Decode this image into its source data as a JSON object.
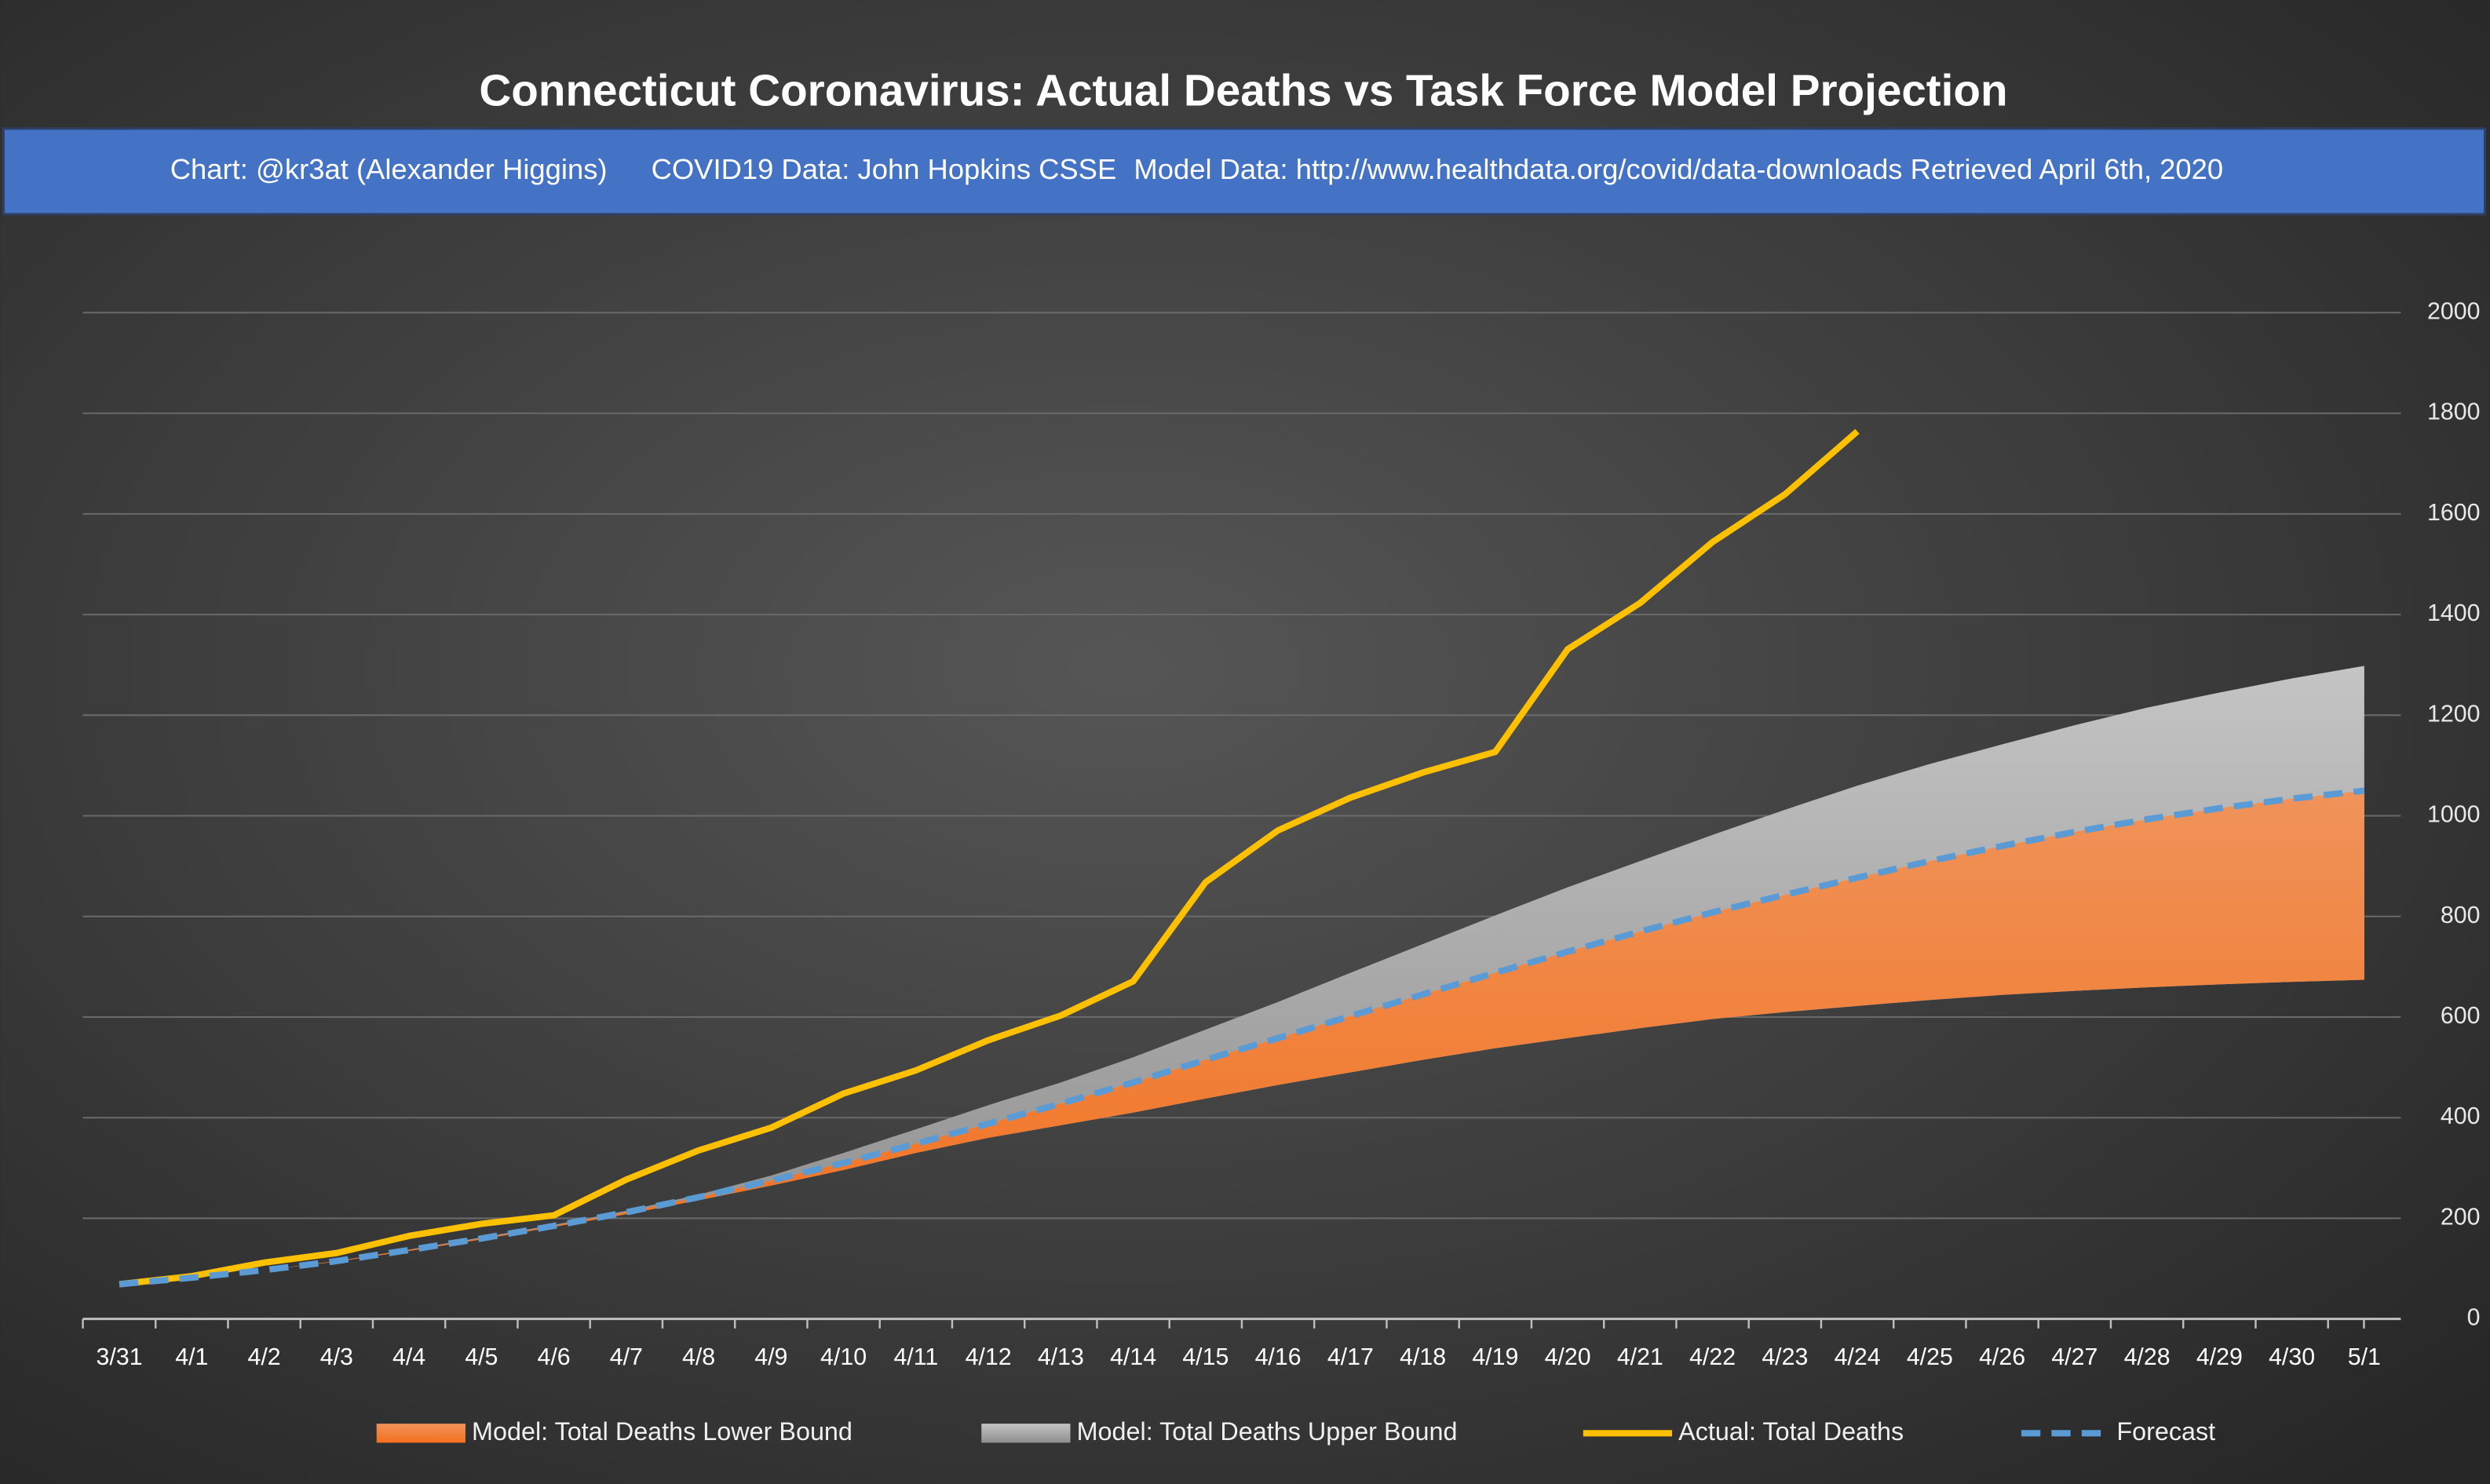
{
  "chart_data": {
    "type": "line",
    "title": "Connecticut Coronavirus: Actual Deaths vs Task Force Model Projection",
    "subtitle": [
      "Chart: @kr3at (Alexander Higgins)",
      "COVID19 Data: John Hopkins CSSE",
      "Model Data: http://www.healthdata.org/covid/data-downloads Retrieved April 6th, 2020"
    ],
    "categories": [
      "3/31",
      "4/1",
      "4/2",
      "4/3",
      "4/4",
      "4/5",
      "4/6",
      "4/7",
      "4/8",
      "4/9",
      "4/10",
      "4/11",
      "4/12",
      "4/13",
      "4/14",
      "4/15",
      "4/16",
      "4/17",
      "4/18",
      "4/19",
      "4/20",
      "4/21",
      "4/22",
      "4/23",
      "4/24",
      "4/25",
      "4/26",
      "4/27",
      "4/28",
      "4/29",
      "4/30",
      "5/1"
    ],
    "series": [
      {
        "name": "Model: Total Deaths Lower Bound",
        "color": "#ed7d31",
        "kind": "area",
        "values": [
          69,
          82,
          97,
          114,
          135,
          158,
          183,
          208,
          236,
          265,
          296,
          330,
          360,
          385,
          410,
          438,
          465,
          490,
          515,
          538,
          558,
          578,
          596,
          610,
          622,
          634,
          644,
          652,
          659,
          665,
          670,
          674
        ]
      },
      {
        "name": "Model: Total Deaths Upper Bound",
        "color": "#a6a6a6",
        "kind": "area",
        "values": [
          69,
          82,
          97,
          115,
          138,
          162,
          187,
          215,
          247,
          285,
          330,
          377,
          425,
          470,
          520,
          575,
          630,
          688,
          745,
          802,
          858,
          910,
          962,
          1012,
          1060,
          1103,
          1142,
          1180,
          1215,
          1245,
          1273,
          1298
        ]
      },
      {
        "name": "Actual: Total Deaths",
        "color": "#ffc000",
        "kind": "line",
        "values": [
          69,
          85,
          112,
          131,
          165,
          189,
          206,
          277,
          335,
          380,
          448,
          494,
          554,
          603,
          671,
          868,
          971,
          1036,
          1086,
          1127,
          1331,
          1423,
          1544,
          1639,
          1764,
          null,
          null,
          null,
          null,
          null,
          null,
          null
        ]
      },
      {
        "name": "Forecast",
        "color": "#5b9bd5",
        "kind": "dashed",
        "values": [
          69,
          82,
          97,
          115,
          137,
          160,
          185,
          212,
          242,
          275,
          310,
          348,
          388,
          428,
          470,
          515,
          558,
          602,
          645,
          688,
          730,
          770,
          808,
          843,
          877,
          910,
          940,
          968,
          993,
          1015,
          1034,
          1050
        ]
      }
    ],
    "ylim": [
      0,
      2000
    ],
    "yticks": [
      0,
      200,
      400,
      600,
      800,
      1000,
      1200,
      1400,
      1600,
      1800,
      2000
    ],
    "grid": true,
    "legend": "bottom"
  }
}
